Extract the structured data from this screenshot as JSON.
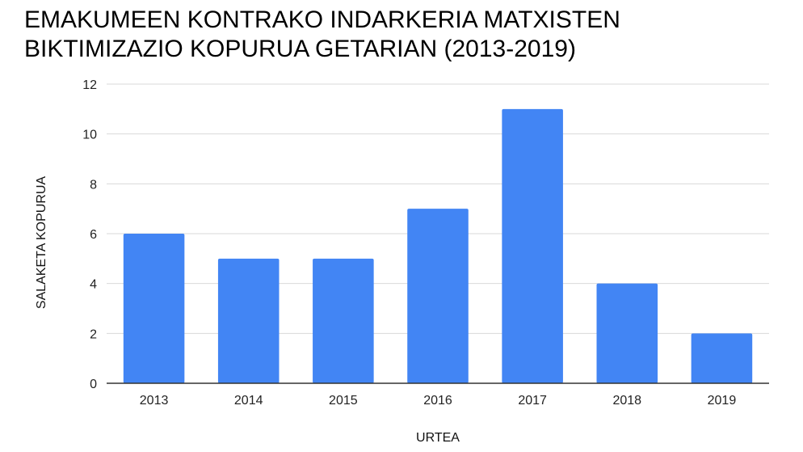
{
  "chart_data": {
    "type": "bar",
    "title_lines": [
      "EMAKUMEEN KONTRAKO INDARKERIA MATXISTEN",
      "BIKTIMIZAZIO KOPURUA GETARIAN (2013-2019)"
    ],
    "categories": [
      "2013",
      "2014",
      "2015",
      "2016",
      "2017",
      "2018",
      "2019"
    ],
    "values": [
      6,
      5,
      5,
      7,
      11,
      4,
      2
    ],
    "xlabel": "URTEA",
    "ylabel": "SALAKETA KOPURUA",
    "ylim": [
      0,
      12
    ],
    "yticks": [
      0,
      2,
      4,
      6,
      8,
      10,
      12
    ],
    "grid": true,
    "legend": "none",
    "bar_color": "#4285f4",
    "grid_color": "#d9d9d9",
    "axis_color": "#333333"
  }
}
